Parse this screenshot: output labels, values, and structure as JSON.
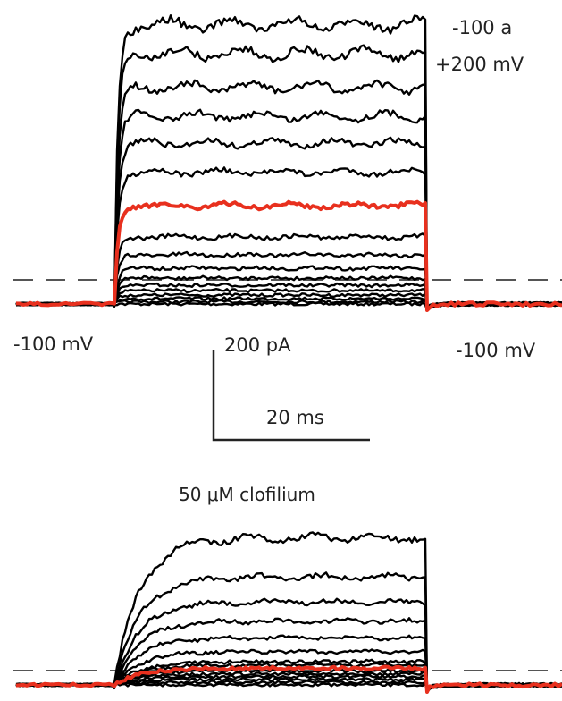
{
  "chart_data": [
    {
      "type": "line",
      "panel": "control",
      "holding_label": "-100 mV",
      "return_label": "-100 mV",
      "step_label_line1": "-100 a",
      "step_label_line2": "+200 mV",
      "zero_current_line": "dashed",
      "step_start_ms": 0,
      "step_end_ms": 50,
      "x_range_ms": [
        -15,
        22
      ],
      "scale_bar": {
        "current_label": "200 pA",
        "time_label": "20 ms"
      },
      "highlight_color": "#e8301e",
      "trace_color": "#000000",
      "series_steady_state_pA": [
        0,
        5,
        12,
        20,
        30,
        42,
        58,
        80,
        110,
        150,
        220,
        295,
        360,
        420,
        485,
        560,
        625
      ],
      "highlight_index": 10
    },
    {
      "type": "line",
      "panel": "clofilium",
      "title": "50 μM clofilium",
      "zero_current_line": "dashed",
      "step_start_ms": 0,
      "step_end_ms": 50,
      "highlight_color": "#e8301e",
      "trace_color": "#000000",
      "series_steady_state_pA": [
        0,
        5,
        10,
        15,
        20,
        25,
        30,
        36,
        42,
        60,
        85,
        115,
        150,
        195,
        265
      ],
      "highlight_index": 6
    }
  ]
}
